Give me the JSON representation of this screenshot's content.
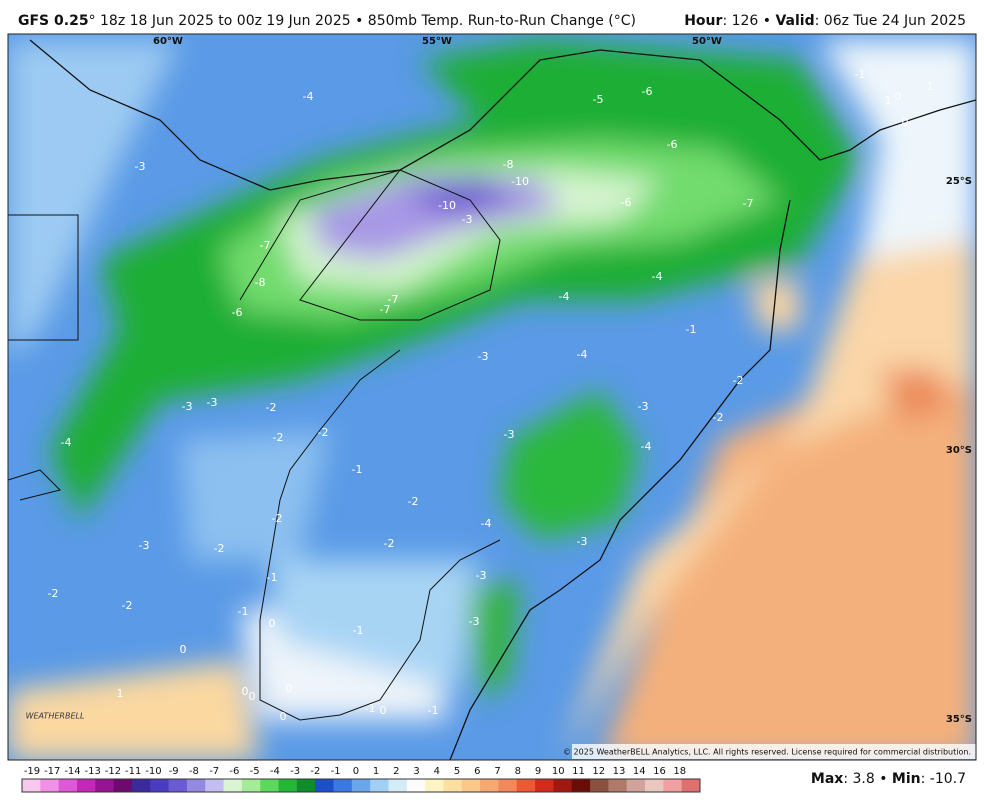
{
  "header": {
    "model": "GFS 0.25",
    "title": "° 18z 18 Jun 2025 to 00z 19 Jun 2025 • 850mb Temp. Run-to-Run Change (°C)",
    "right": [
      "Hour",
      ": 126 • ",
      "Valid",
      ": 06z Tue 24 Jun 2025"
    ]
  },
  "geo_labels": [
    "60°W",
    "55°W",
    "50°W",
    "25°S",
    "30°S",
    "35°S"
  ],
  "map_labels": [
    -4,
    -5,
    -6,
    -1,
    1,
    0,
    1,
    0,
    -3,
    -8,
    -10,
    -6,
    -6,
    -7,
    -10,
    -3,
    -7,
    -8,
    -6,
    -7,
    -7,
    -4,
    -4,
    -1,
    -3,
    -4,
    -2,
    -3,
    -3,
    -2,
    -3,
    -2,
    -4,
    -2,
    -2,
    -3,
    -4,
    -1,
    -2,
    -2,
    -4,
    -3,
    -2,
    -2,
    -3,
    -1,
    -3,
    -2,
    -2,
    -1,
    0,
    -1,
    -3,
    0,
    1,
    0,
    0,
    0,
    -1,
    0,
    -1,
    0
  ],
  "logo": "WEATHERBELL",
  "copyright": "© 2025 WeatherBELL Analytics, LLC. All rights reserved. License required for commercial distribution.",
  "colorbar": {
    "labels": [
      -19,
      -17,
      -14,
      -13,
      -12,
      -11,
      -10,
      -9,
      -8,
      -7,
      -6,
      -5,
      -4,
      -3,
      -2,
      -1,
      0,
      1,
      2,
      3,
      4,
      5,
      6,
      7,
      8,
      9,
      10,
      11,
      12,
      13,
      14,
      16,
      18
    ],
    "colors": [
      "#f6c8ee",
      "#f090e6",
      "#e058d8",
      "#c428b8",
      "#961494",
      "#6c0a6e",
      "#3a2a9c",
      "#4a3cc0",
      "#6a5ad4",
      "#9488e0",
      "#c4bef0",
      "#d8f4d0",
      "#a4ec98",
      "#5cd85c",
      "#24b836",
      "#0e8e2a",
      "#1c4fc8",
      "#3a7ae0",
      "#6aa6ec",
      "#a2d0f4",
      "#d4ecf8",
      "#fbfbfb",
      "#fdf4c4",
      "#fde0a0",
      "#fbc88a",
      "#f7a870",
      "#f4885a",
      "#ec5a34",
      "#d42c1c",
      "#a01810",
      "#6a0c08",
      "#8a5040",
      "#b07a6a",
      "#d0a49a",
      "#e8c8c0",
      "#f0a0a0",
      "#e07070"
    ]
  },
  "footer": [
    "Max",
    ": 3.8 • ",
    "Min",
    ": -10.7"
  ]
}
